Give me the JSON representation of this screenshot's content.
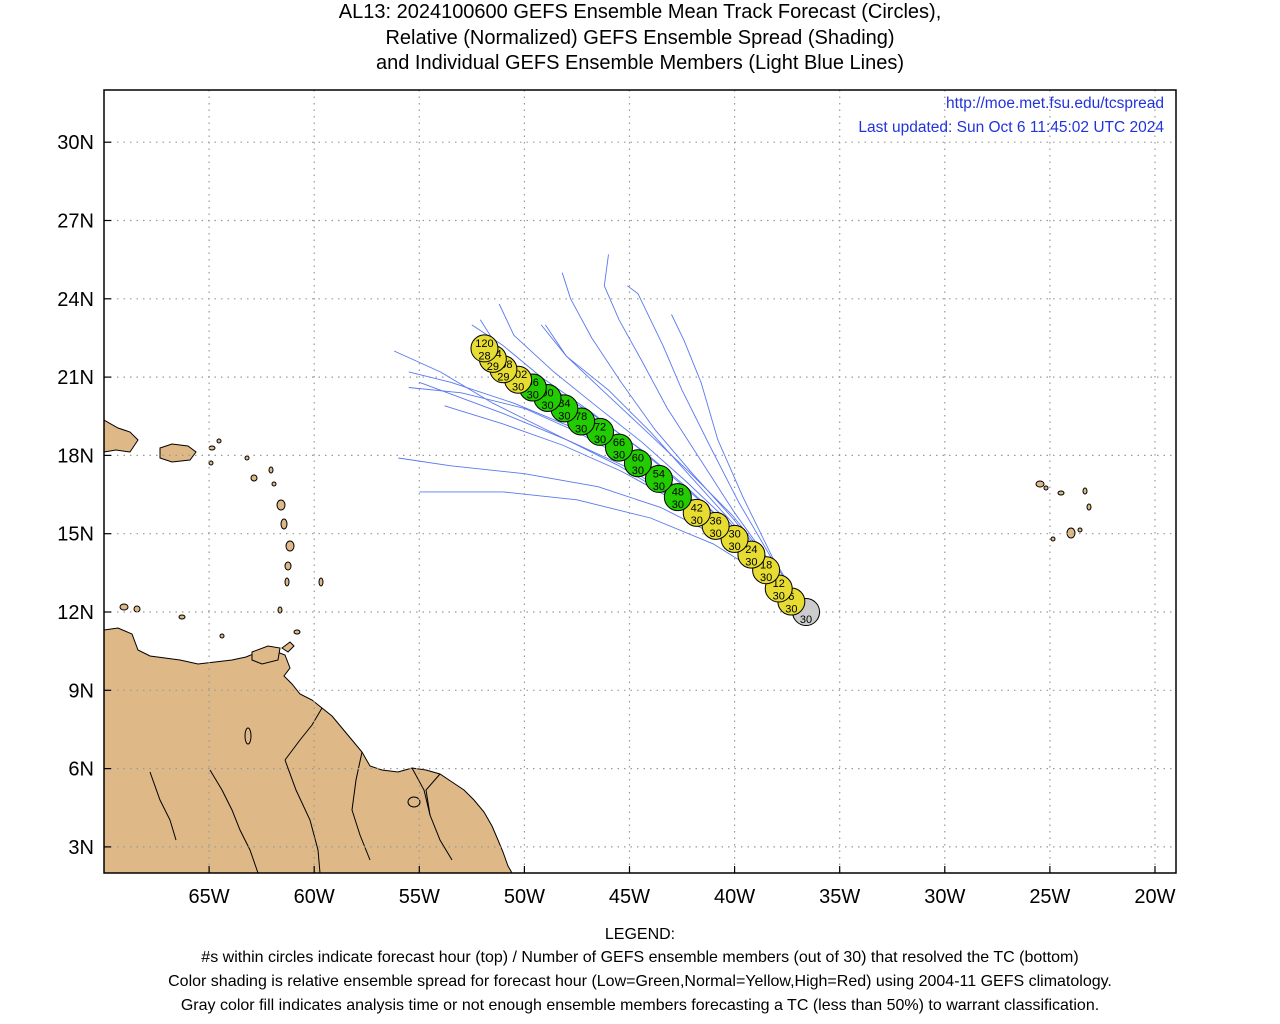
{
  "title": {
    "line1": "AL13: 2024100600 GEFS Ensemble Mean Track Forecast (Circles),",
    "line2": "Relative (Normalized) GEFS Ensemble Spread (Shading)",
    "line3": "and Individual GEFS Ensemble Members (Light Blue Lines)"
  },
  "header_info": {
    "url": "http://moe.met.fsu.edu/tcspread",
    "last_updated": "Last updated: Sun Oct 6 11:45:02 UTC 2024"
  },
  "axes": {
    "lon_range": [
      -70,
      -19
    ],
    "lat_range": [
      2,
      32
    ],
    "x_ticks": [
      {
        "v": -65,
        "label": "65W"
      },
      {
        "v": -60,
        "label": "60W"
      },
      {
        "v": -55,
        "label": "55W"
      },
      {
        "v": -50,
        "label": "50W"
      },
      {
        "v": -45,
        "label": "45W"
      },
      {
        "v": -40,
        "label": "40W"
      },
      {
        "v": -35,
        "label": "35W"
      },
      {
        "v": -30,
        "label": "30W"
      },
      {
        "v": -25,
        "label": "25W"
      },
      {
        "v": -20,
        "label": "20W"
      }
    ],
    "y_ticks": [
      {
        "v": 3,
        "label": "3N"
      },
      {
        "v": 6,
        "label": "6N"
      },
      {
        "v": 9,
        "label": "9N"
      },
      {
        "v": 12,
        "label": "12N"
      },
      {
        "v": 15,
        "label": "15N"
      },
      {
        "v": 18,
        "label": "18N"
      },
      {
        "v": 21,
        "label": "21N"
      },
      {
        "v": 24,
        "label": "24N"
      },
      {
        "v": 27,
        "label": "27N"
      },
      {
        "v": 30,
        "label": "30N"
      }
    ],
    "grid": true
  },
  "colors": {
    "low": "#22cc00",
    "normal": "#e6dc32",
    "high": "#ff0000",
    "analysis": "#cccccc",
    "member_line": "#5a78f0",
    "land": "#deb887",
    "header_link": "#2233dd"
  },
  "mean_track": [
    {
      "hour": "",
      "members": "30",
      "lon": -36.6,
      "lat": 12.0,
      "spread": "analysis"
    },
    {
      "hour": "6",
      "members": "30",
      "lon": -37.3,
      "lat": 12.4,
      "spread": "normal"
    },
    {
      "hour": "12",
      "members": "30",
      "lon": -37.9,
      "lat": 12.9,
      "spread": "normal"
    },
    {
      "hour": "18",
      "members": "30",
      "lon": -38.5,
      "lat": 13.6,
      "spread": "normal"
    },
    {
      "hour": "24",
      "members": "30",
      "lon": -39.2,
      "lat": 14.2,
      "spread": "normal"
    },
    {
      "hour": "30",
      "members": "30",
      "lon": -40.0,
      "lat": 14.8,
      "spread": "normal"
    },
    {
      "hour": "36",
      "members": "30",
      "lon": -40.9,
      "lat": 15.3,
      "spread": "normal"
    },
    {
      "hour": "42",
      "members": "30",
      "lon": -41.8,
      "lat": 15.8,
      "spread": "normal"
    },
    {
      "hour": "48",
      "members": "30",
      "lon": -42.7,
      "lat": 16.4,
      "spread": "low"
    },
    {
      "hour": "54",
      "members": "30",
      "lon": -43.6,
      "lat": 17.1,
      "spread": "low"
    },
    {
      "hour": "60",
      "members": "30",
      "lon": -44.6,
      "lat": 17.7,
      "spread": "low"
    },
    {
      "hour": "66",
      "members": "30",
      "lon": -45.5,
      "lat": 18.3,
      "spread": "low"
    },
    {
      "hour": "72",
      "members": "30",
      "lon": -46.4,
      "lat": 18.9,
      "spread": "low"
    },
    {
      "hour": "78",
      "members": "30",
      "lon": -47.3,
      "lat": 19.3,
      "spread": "low"
    },
    {
      "hour": "84",
      "members": "30",
      "lon": -48.1,
      "lat": 19.8,
      "spread": "low"
    },
    {
      "hour": "90",
      "members": "30",
      "lon": -48.9,
      "lat": 20.2,
      "spread": "low"
    },
    {
      "hour": "96",
      "members": "30",
      "lon": -49.6,
      "lat": 20.6,
      "spread": "low"
    },
    {
      "hour": "102",
      "members": "30",
      "lon": -50.3,
      "lat": 20.9,
      "spread": "normal"
    },
    {
      "hour": "108",
      "members": "29",
      "lon": -51.0,
      "lat": 21.3,
      "spread": "normal"
    },
    {
      "hour": "114",
      "members": "29",
      "lon": -51.5,
      "lat": 21.7,
      "spread": "normal"
    },
    {
      "hour": "120",
      "members": "28",
      "lon": -51.9,
      "lat": 22.1,
      "spread": "normal"
    }
  ],
  "members": [
    [
      [
        -36.6,
        12.0
      ],
      [
        -38.5,
        13.6
      ],
      [
        -40.5,
        15.0
      ],
      [
        -42.8,
        16.3
      ],
      [
        -45.0,
        17.5
      ],
      [
        -48.0,
        18.6
      ],
      [
        -51.0,
        19.6
      ],
      [
        -55.0,
        20.8
      ]
    ],
    [
      [
        -36.6,
        12.0
      ],
      [
        -38.5,
        13.5
      ],
      [
        -40.8,
        14.9
      ],
      [
        -43.5,
        16.0
      ],
      [
        -46.5,
        16.8
      ],
      [
        -50.0,
        17.3
      ],
      [
        -53.5,
        17.6
      ],
      [
        -56.0,
        17.9
      ]
    ],
    [
      [
        -36.6,
        12.0
      ],
      [
        -38.6,
        13.4
      ],
      [
        -41.0,
        14.6
      ],
      [
        -44.0,
        15.6
      ],
      [
        -47.5,
        16.3
      ],
      [
        -51.0,
        16.6
      ],
      [
        -55.0,
        16.6
      ]
    ],
    [
      [
        -36.6,
        12.0
      ],
      [
        -38.4,
        13.7
      ],
      [
        -40.3,
        15.2
      ],
      [
        -42.5,
        16.6
      ],
      [
        -45.0,
        17.9
      ],
      [
        -47.8,
        19.1
      ],
      [
        -50.5,
        20.0
      ],
      [
        -53.5,
        20.8
      ],
      [
        -55.5,
        21.2
      ]
    ],
    [
      [
        -36.6,
        12.0
      ],
      [
        -38.4,
        13.7
      ],
      [
        -40.3,
        15.3
      ],
      [
        -42.3,
        16.8
      ],
      [
        -44.4,
        18.2
      ],
      [
        -46.8,
        19.6
      ],
      [
        -49.3,
        20.9
      ],
      [
        -52.0,
        22.2
      ]
    ],
    [
      [
        -36.6,
        12.0
      ],
      [
        -38.3,
        13.8
      ],
      [
        -40.1,
        15.6
      ],
      [
        -42.0,
        17.3
      ],
      [
        -43.8,
        19.0
      ],
      [
        -45.4,
        20.8
      ],
      [
        -46.8,
        22.5
      ],
      [
        -47.8,
        24.0
      ],
      [
        -48.2,
        25.0
      ]
    ],
    [
      [
        -36.6,
        12.0
      ],
      [
        -38.3,
        13.9
      ],
      [
        -40.0,
        15.8
      ],
      [
        -41.6,
        17.8
      ],
      [
        -43.2,
        19.8
      ],
      [
        -44.4,
        21.6
      ],
      [
        -45.5,
        23.2
      ],
      [
        -46.2,
        24.5
      ],
      [
        -46.0,
        25.7
      ]
    ],
    [
      [
        -36.6,
        12.0
      ],
      [
        -38.2,
        14.0
      ],
      [
        -39.8,
        16.2
      ],
      [
        -41.2,
        18.4
      ],
      [
        -42.5,
        20.5
      ],
      [
        -43.4,
        22.2
      ],
      [
        -44.0,
        23.2
      ],
      [
        -44.6,
        24.2
      ],
      [
        -45.1,
        24.5
      ]
    ],
    [
      [
        -36.6,
        12.0
      ],
      [
        -38.3,
        13.9
      ],
      [
        -40.1,
        15.7
      ],
      [
        -42.2,
        17.4
      ],
      [
        -44.3,
        19.0
      ],
      [
        -46.3,
        20.5
      ],
      [
        -48.0,
        21.8
      ],
      [
        -49.2,
        23.0
      ]
    ],
    [
      [
        -36.6,
        12.0
      ],
      [
        -38.5,
        13.6
      ],
      [
        -40.6,
        15.1
      ],
      [
        -43.0,
        16.4
      ],
      [
        -45.5,
        17.6
      ],
      [
        -48.5,
        18.8
      ],
      [
        -51.5,
        20.0
      ],
      [
        -54.0,
        21.2
      ],
      [
        -56.2,
        22.0
      ]
    ],
    [
      [
        -36.6,
        12.0
      ],
      [
        -38.4,
        13.7
      ],
      [
        -40.4,
        15.2
      ],
      [
        -42.6,
        16.6
      ],
      [
        -45.0,
        17.8
      ],
      [
        -47.5,
        18.9
      ],
      [
        -50.0,
        19.8
      ],
      [
        -53.0,
        20.4
      ],
      [
        -55.5,
        20.6
      ]
    ],
    [
      [
        -36.6,
        12.0
      ],
      [
        -38.4,
        13.6
      ],
      [
        -40.4,
        15.2
      ],
      [
        -42.6,
        16.7
      ],
      [
        -44.8,
        18.1
      ],
      [
        -47.0,
        19.4
      ],
      [
        -49.2,
        20.6
      ],
      [
        -51.0,
        21.8
      ],
      [
        -52.1,
        23.2
      ]
    ],
    [
      [
        -36.6,
        12.0
      ],
      [
        -38.4,
        13.7
      ],
      [
        -40.2,
        15.4
      ],
      [
        -42.3,
        17.0
      ],
      [
        -44.4,
        18.5
      ],
      [
        -46.6,
        19.9
      ],
      [
        -48.6,
        21.2
      ],
      [
        -50.5,
        22.6
      ],
      [
        -51.2,
        23.8
      ]
    ],
    [
      [
        -36.6,
        12.0
      ],
      [
        -38.5,
        13.6
      ],
      [
        -40.5,
        15.0
      ],
      [
        -42.9,
        16.3
      ],
      [
        -45.4,
        17.4
      ],
      [
        -48.2,
        18.4
      ],
      [
        -51.0,
        19.2
      ],
      [
        -53.8,
        19.9
      ]
    ],
    [
      [
        -36.6,
        12.0
      ],
      [
        -38.4,
        13.7
      ],
      [
        -40.3,
        15.3
      ],
      [
        -42.4,
        16.8
      ],
      [
        -44.6,
        18.3
      ],
      [
        -46.9,
        19.7
      ],
      [
        -49.2,
        21.0
      ],
      [
        -51.0,
        22.2
      ],
      [
        -52.5,
        23.0
      ]
    ],
    [
      [
        -36.6,
        12.0
      ],
      [
        -38.3,
        13.8
      ],
      [
        -40.2,
        15.5
      ],
      [
        -42.1,
        17.2
      ],
      [
        -44.0,
        18.9
      ],
      [
        -46.0,
        20.5
      ],
      [
        -48.0,
        21.8
      ],
      [
        -49.0,
        23.0
      ]
    ],
    [
      [
        -36.6,
        12.0
      ],
      [
        -38.2,
        14.1
      ],
      [
        -39.6,
        16.4
      ],
      [
        -40.8,
        18.6
      ],
      [
        -41.6,
        20.8
      ],
      [
        -42.4,
        22.4
      ],
      [
        -43.0,
        23.4
      ]
    ]
  ],
  "legend": {
    "heading": "LEGEND:",
    "line1": "#s within circles indicate forecast hour (top) / Number of GEFS ensemble members (out of 30) that resolved the TC (bottom)",
    "line2": "Color shading is relative ensemble spread for forecast hour (Low=Green,Normal=Yellow,High=Red) using 2004-11 GEFS climatology.",
    "line3": "Gray color fill indicates analysis time or not enough ensemble members forecasting a TC (less than 50%) to warrant classification."
  }
}
